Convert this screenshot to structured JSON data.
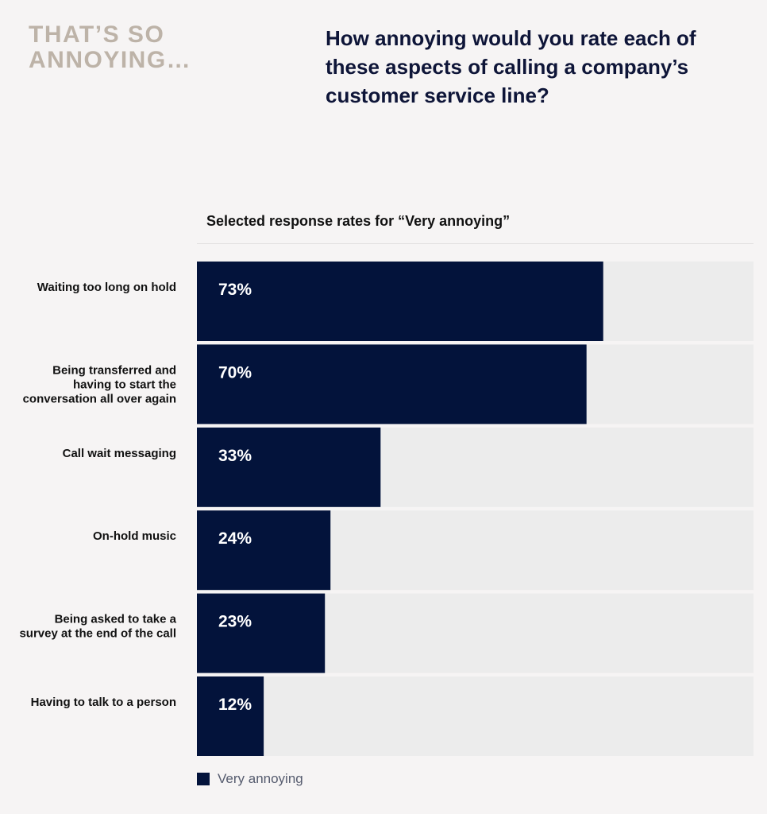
{
  "header": {
    "kicker": "THAT’S SO ANNOYING…",
    "question": "How annoying would you rate each of these aspects of calling a company’s customer service line?"
  },
  "colors": {
    "bar": "#03133b",
    "track": "#ececec",
    "bar_label": "#ffffff",
    "category_label": "#111111"
  },
  "chart_data": {
    "type": "bar",
    "orientation": "horizontal",
    "title": "Selected response rates for “Very annoying”",
    "categories": [
      "Waiting too long on hold",
      "Being transferred and having to start the conversation all over again",
      "Call wait messaging",
      "On-hold music",
      "Being asked to take a survey at the end of the call",
      "Having to talk to a person"
    ],
    "category_lines": [
      [
        "Waiting too long on hold"
      ],
      [
        "Being transferred and",
        "having to start the",
        "conversation all over again"
      ],
      [
        "Call wait messaging"
      ],
      [
        "On-hold music"
      ],
      [
        "Being asked to take a",
        "survey at the end of the call"
      ],
      [
        "Having to talk to a person"
      ]
    ],
    "values": [
      73,
      70,
      33,
      24,
      23,
      12
    ],
    "value_labels": [
      "73%",
      "70%",
      "33%",
      "24%",
      "23%",
      "12%"
    ],
    "xlim": [
      0,
      100
    ],
    "series": [
      {
        "name": "Very annoying",
        "values": [
          73,
          70,
          33,
          24,
          23,
          12
        ]
      }
    ],
    "legend": {
      "position": "bottom-left",
      "label": "Very annoying"
    }
  }
}
